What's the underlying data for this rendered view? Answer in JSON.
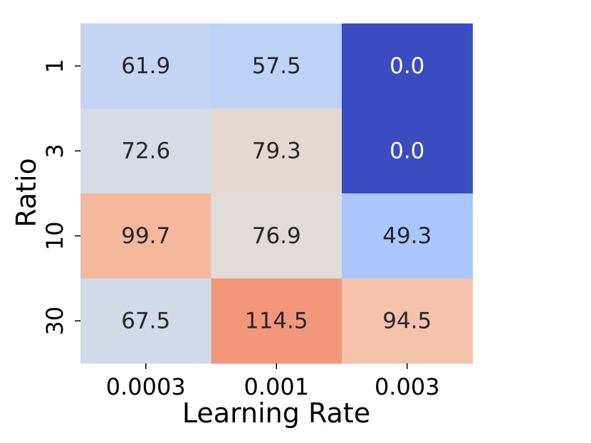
{
  "chart_data": {
    "type": "heatmap",
    "title": "",
    "xlabel": "Learning Rate",
    "ylabel": "Ratio",
    "x_categories": [
      "0.0003",
      "0.001",
      "0.003"
    ],
    "y_categories": [
      "1",
      "3",
      "10",
      "30"
    ],
    "values": [
      [
        61.9,
        57.5,
        0.0
      ],
      [
        72.6,
        79.3,
        0.0
      ],
      [
        99.7,
        76.9,
        49.3
      ],
      [
        67.5,
        114.5,
        94.5
      ]
    ],
    "cell_colors": [
      [
        "#c4d5f3",
        "#bcd2f7",
        "#3b4cc0"
      ],
      [
        "#d6dce4",
        "#e4d9d2",
        "#3b4cc0"
      ],
      [
        "#f5b89d",
        "#e0dbd8",
        "#aac7fd"
      ],
      [
        "#d0dae9",
        "#f3977b",
        "#f5c2aa"
      ]
    ],
    "cell_text_colors": [
      [
        "#262626",
        "#262626",
        "#ffffff"
      ],
      [
        "#262626",
        "#262626",
        "#ffffff"
      ],
      [
        "#262626",
        "#262626",
        "#262626"
      ],
      [
        "#262626",
        "#262626",
        "#262626"
      ]
    ],
    "value_format": "one-decimal",
    "colormap": "coolwarm",
    "colorbar": false,
    "grid": false
  }
}
